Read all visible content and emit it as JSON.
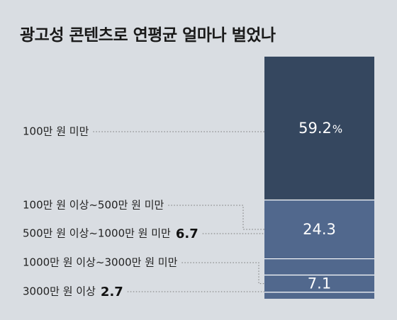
{
  "chart_data": {
    "type": "bar",
    "title": "광고성 콘텐츠로 연평균 얼마나 벌었나",
    "unit": "%",
    "categories": [
      "100만 원 미만",
      "100만 원 이상~500만 원 미만",
      "500만 원 이상~1000만 원 미만",
      "1000만 원 이상~3000만 원 미만",
      "3000만 원 이상"
    ],
    "values": [
      59.2,
      24.3,
      6.7,
      7.1,
      2.7
    ],
    "value_labels": [
      "59.2",
      "24.3",
      "6.7",
      "7.1",
      "2.7"
    ],
    "colors": [
      "#35475f",
      "#51688d",
      "#51688d",
      "#51688d",
      "#51688d"
    ],
    "stacked": true
  }
}
